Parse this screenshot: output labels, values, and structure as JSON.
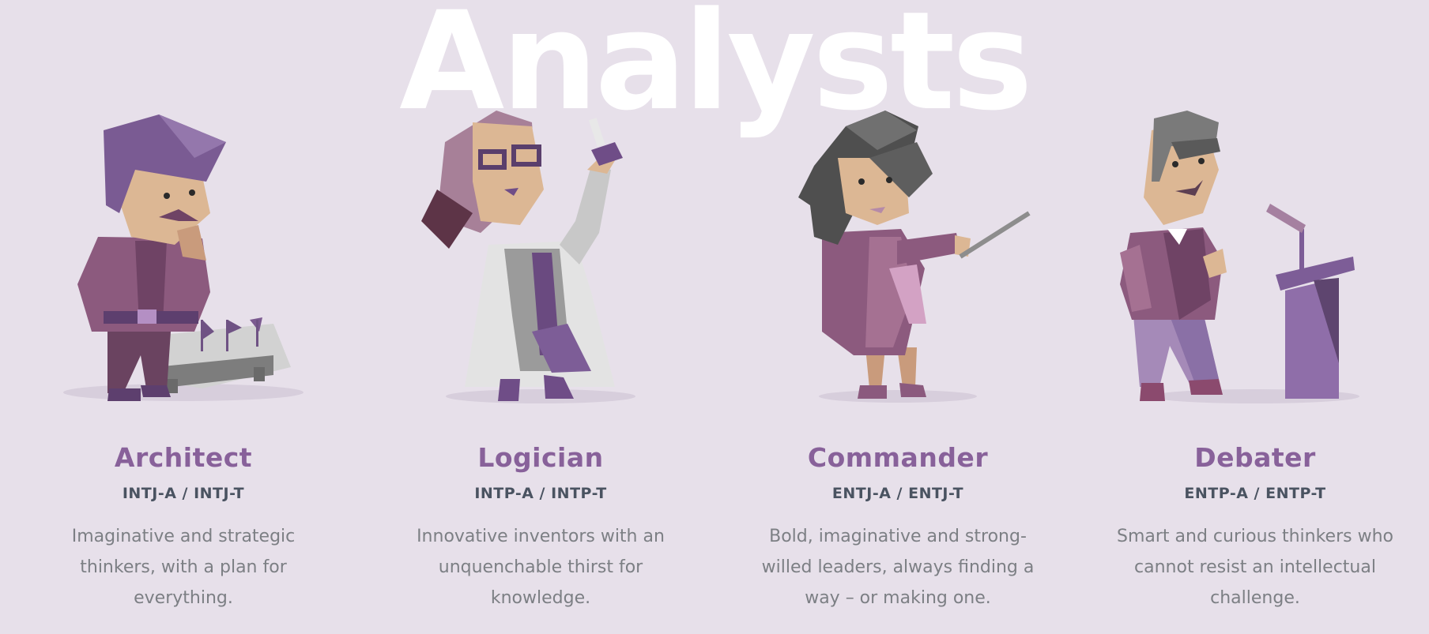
{
  "section": {
    "title": "Analysts"
  },
  "colors": {
    "background": "#e7e0ea",
    "title": "#ffffff",
    "name": "#88619a",
    "code": "#4a5361",
    "description": "#7c7f84"
  },
  "cards": [
    {
      "name": "Architect",
      "code": "INTJ-A / INTJ-T",
      "description": "Imaginative and strategic thinkers, with a plan for everything.",
      "illustration_icon": "architect-figure-illustration"
    },
    {
      "name": "Logician",
      "code": "INTP-A / INTP-T",
      "description": "Innovative inventors with an unquenchable thirst for knowledge.",
      "illustration_icon": "logician-figure-illustration"
    },
    {
      "name": "Commander",
      "code": "ENTJ-A / ENTJ-T",
      "description": "Bold, imaginative and strong-willed leaders, always finding a way – or making one.",
      "illustration_icon": "commander-figure-illustration"
    },
    {
      "name": "Debater",
      "code": "ENTP-A / ENTP-T",
      "description": "Smart and curious thinkers who cannot resist an intellectual challenge.",
      "illustration_icon": "debater-figure-illustration"
    }
  ]
}
